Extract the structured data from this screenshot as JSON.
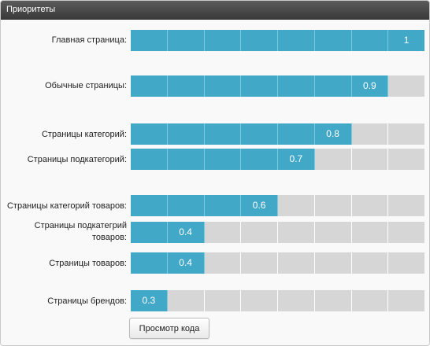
{
  "panel": {
    "title": "Приоритеты"
  },
  "rows": [
    {
      "label": "Главная страница:",
      "value": "1"
    },
    {
      "label": "Обычные страницы:",
      "value": "0.9"
    },
    {
      "label": "Страницы категорий:",
      "value": "0.8"
    },
    {
      "label": "Страницы подкатегорий:",
      "value": "0.7"
    },
    {
      "label": "Страницы категорий товаров:",
      "value": "0.6"
    },
    {
      "label": "Страницы подкатегрий товаров:",
      "value": "0.4"
    },
    {
      "label": "Страницы товаров:",
      "value": "0.4"
    },
    {
      "label": "Страницы брендов:",
      "value": "0.3"
    }
  ],
  "buttons": {
    "view_code": "Просмотр кода"
  },
  "colors": {
    "filled": "#42a8c8",
    "empty": "#d6d6d6",
    "header": "#444444"
  }
}
